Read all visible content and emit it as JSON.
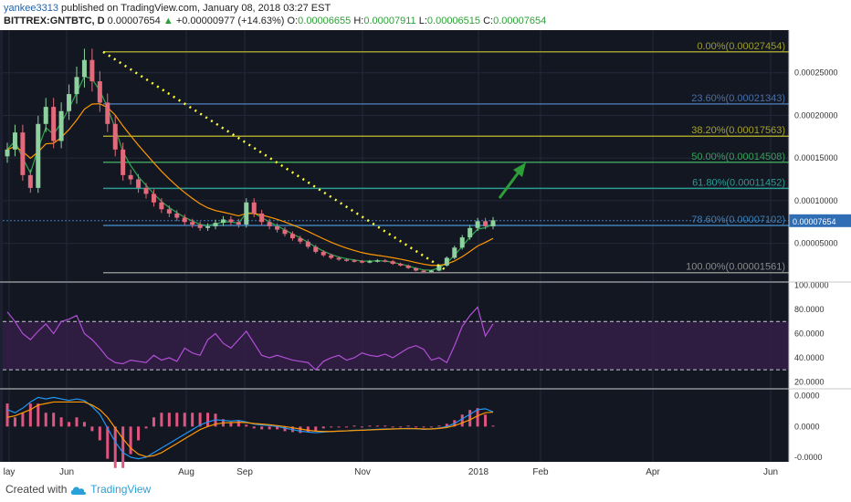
{
  "header": {
    "author": "yankee3313",
    "published_text": "published on TradingView.com, January 08, 2018 03:27 EST",
    "symbol": "BITTREX:GNTBTC, D",
    "last": "0.00007654",
    "change_arrow": "▲",
    "change": "+0.00000977 (+14.63%)",
    "o_label": "O:",
    "o_value": "0.00006655",
    "h_label": "H:",
    "h_value": "0.00007911",
    "l_label": "L:",
    "l_value": "0.00006515",
    "c_label": "C:",
    "c_value": "0.00007654"
  },
  "footer": {
    "created_with": "Created with",
    "brand": "TradingView"
  },
  "colors": {
    "background": "#131722",
    "up": "#8fd19e",
    "down": "#e36a7a",
    "rsi": "#b24fd6",
    "macd": "#2196f3",
    "signal": "#ff9800",
    "hist": "#e05580",
    "trend": "#ffff33",
    "arrow": "#2e9e38",
    "fast_ma": "#2fa84f",
    "slow_ma": "#ff9800",
    "last_price": "#3a7fc1"
  },
  "chart_data": [
    {
      "type": "candlestick",
      "name": "price",
      "x_tick_labels": [
        "lay",
        "Jun",
        "Aug",
        "Sep",
        "Nov",
        "2018",
        "Feb",
        "Apr",
        "Jun"
      ],
      "y_tick_labels": [
        "0.00025000",
        "0.00020000",
        "0.00015000",
        "0.00010000",
        "0.00005000"
      ],
      "y_ticks": [
        0.00025,
        0.0002,
        0.00015,
        0.0001,
        5e-05
      ],
      "ylim": [
        5.7e-06,
        0.0003
      ],
      "last_price_label": "0.00007654",
      "last_price": 7.654e-05,
      "fib_levels": [
        {
          "label": "0.00%(0.00027454)",
          "value": 0.00027454,
          "color": "#9c9c2c"
        },
        {
          "label": "23.60%(0.00021343)",
          "value": 0.00021343,
          "color": "#4a6fa5"
        },
        {
          "label": "38.20%(0.00017563)",
          "value": 0.00017563,
          "color": "#a6a22a"
        },
        {
          "label": "50.00%(0.00014508)",
          "value": 0.00014508,
          "color": "#3a9e5a"
        },
        {
          "label": "61.80%(0.00011452)",
          "value": 0.00011452,
          "color": "#2d9b95"
        },
        {
          "label": "78.60%(0.00007102)",
          "value": 7.102e-05,
          "color": "#3f7fb5"
        },
        {
          "label": "100.00%(0.00001561)",
          "value": 1.561e-05,
          "color": "#8a8a8a"
        }
      ],
      "closes": [
        0.00016,
        0.00018,
        0.00013,
        0.000115,
        0.00019,
        0.00021,
        0.00017,
        0.000205,
        0.000225,
        0.000245,
        0.000265,
        0.00024,
        0.000215,
        0.00019,
        0.00016,
        0.00013,
        0.000125,
        0.000115,
        0.000108,
        9.8e-05,
        9e-05,
        8.5e-05,
        8e-05,
        7.5e-05,
        7.2e-05,
        6.8e-05,
        7e-05,
        7.4e-05,
        7.8e-05,
        7.5e-05,
        7.2e-05,
        9.8e-05,
        8.5e-05,
        7.5e-05,
        7e-05,
        6.6e-05,
        6.1e-05,
        5.6e-05,
        5.2e-05,
        4.6e-05,
        4e-05,
        3.6e-05,
        3.3e-05,
        3.1e-05,
        3e-05,
        2.9e-05,
        2.8e-05,
        2.9e-05,
        3e-05,
        2.9e-05,
        2.6e-05,
        2.4e-05,
        2.1e-05,
        1.8e-05,
        1.7e-05,
        1.8e-05,
        2.4e-05,
        3.3e-05,
        4.5e-05,
        5.7e-05,
        6.8e-05,
        7.6e-05,
        7e-05,
        7.7e-05
      ]
    },
    {
      "type": "line",
      "name": "rsi",
      "y_tick_labels": [
        "100.0000",
        "80.0000",
        "60.0000",
        "40.0000",
        "20.0000"
      ],
      "y_ticks": [
        100,
        80,
        60,
        40,
        20
      ],
      "ylim": [
        15,
        102
      ],
      "bands": [
        70,
        30
      ],
      "values": [
        78,
        70,
        60,
        55,
        62,
        68,
        60,
        70,
        72,
        75,
        60,
        55,
        48,
        40,
        36,
        35,
        38,
        37,
        36,
        42,
        38,
        40,
        37,
        48,
        44,
        42,
        55,
        60,
        52,
        48,
        55,
        62,
        52,
        42,
        40,
        42,
        40,
        38,
        37,
        36,
        30,
        37,
        40,
        42,
        38,
        40,
        44,
        42,
        41,
        43,
        40,
        44,
        48,
        50,
        47,
        38,
        40,
        36,
        50,
        66,
        75,
        82,
        58,
        68
      ]
    },
    {
      "type": "line",
      "name": "macd",
      "y_tick_labels": [
        "0.0000",
        "0.0000",
        "-0.0000"
      ],
      "y_ticks": [
        1e-05,
        0,
        -1e-05
      ],
      "ylim": [
        -1.15e-05,
        1.2e-05
      ],
      "macd": [
        5.5e-06,
        4.5e-06,
        6e-06,
        8e-06,
        9.5e-06,
        9e-06,
        9.5e-06,
        9e-06,
        8.5e-06,
        9e-06,
        8.5e-06,
        6.5e-06,
        4e-06,
        -5e-07,
        -5e-06,
        -8.5e-06,
        -1e-05,
        -1.05e-05,
        -1e-05,
        -8.5e-06,
        -7e-06,
        -5.5e-06,
        -4e-06,
        -2.5e-06,
        -1e-06,
        5e-07,
        1.5e-06,
        2.2e-06,
        2e-06,
        1.8e-06,
        2e-06,
        1.5e-06,
        8e-07,
        5e-07,
        3e-07,
        0,
        -5e-07,
        -1e-06,
        -1.5e-06,
        -1.8e-06,
        -2e-06,
        -1.8e-06,
        -1.6e-06,
        -1.5e-06,
        -1.4e-06,
        -1.2e-06,
        -1.2e-06,
        -1e-06,
        -9e-07,
        -8e-07,
        -8e-07,
        -7e-07,
        -6e-07,
        -7e-07,
        -9e-07,
        -8e-07,
        -5e-07,
        0,
        1e-06,
        2.5e-06,
        4e-06,
        5.5e-06,
        5.8e-06,
        4.8e-06
      ],
      "signal": [
        3e-06,
        3.5e-06,
        4.5e-06,
        5.5e-06,
        7e-06,
        7.5e-06,
        8e-06,
        8e-06,
        8e-06,
        8e-06,
        8e-06,
        7e-06,
        5.5e-06,
        3e-06,
        -5e-07,
        -4e-06,
        -7e-06,
        -9e-06,
        -9.8e-06,
        -9.5e-06,
        -8.5e-06,
        -7e-06,
        -5.5e-06,
        -4e-06,
        -2.5e-06,
        -1e-06,
        0,
        8e-07,
        1.2e-06,
        1.3e-06,
        1.4e-06,
        1.3e-06,
        1e-06,
        8e-07,
        6e-07,
        3e-07,
        0,
        -4e-07,
        -8e-07,
        -1.2e-06,
        -1.5e-06,
        -1.6e-06,
        -1.6e-06,
        -1.5e-06,
        -1.4e-06,
        -1.3e-06,
        -1.2e-06,
        -1.1e-06,
        -1e-06,
        -9e-07,
        -8e-07,
        -7e-07,
        -7e-07,
        -7e-07,
        -8e-07,
        -8e-07,
        -6e-07,
        -3e-07,
        3e-07,
        1.2e-06,
        2.2e-06,
        3.5e-06,
        4.5e-06,
        4.7e-06
      ]
    }
  ]
}
